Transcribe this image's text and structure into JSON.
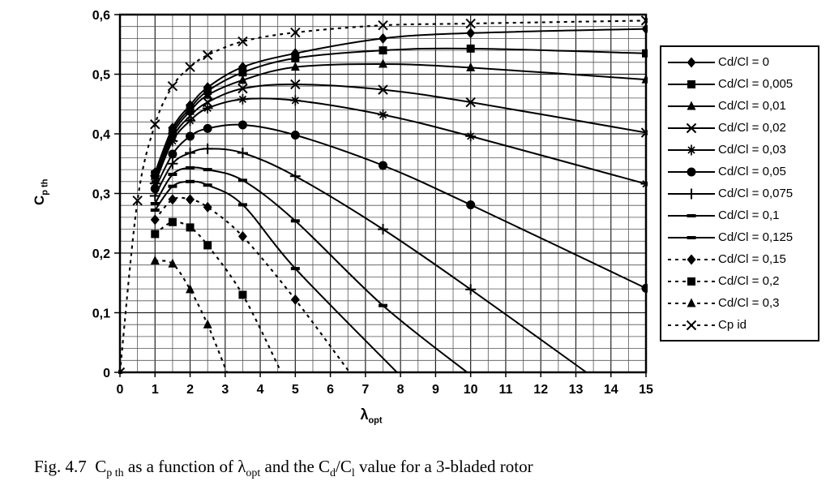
{
  "figure": {
    "caption_parts": [
      {
        "text": "Fig. 4.7  C"
      },
      {
        "text": "p th",
        "sub": true
      },
      {
        "text": " as a function of "
      },
      {
        "text": "λ"
      },
      {
        "text": "opt",
        "sub": true
      },
      {
        "text": " and the C"
      },
      {
        "text": "d",
        "sub": true
      },
      {
        "text": "/C"
      },
      {
        "text": "l",
        "sub": true
      },
      {
        "text": " value for a 3-bladed rotor"
      }
    ]
  },
  "chart": {
    "ylabel_main": "C",
    "ylabel_sub": "p th",
    "xlabel_main": "λ",
    "xlabel_sub": "opt"
  },
  "chart_data": {
    "type": "line",
    "title": "",
    "xlabel": "lambda_opt",
    "ylabel": "Cp_th",
    "xlim": [
      0,
      15
    ],
    "ylim": [
      0,
      0.6
    ],
    "grid": true,
    "x_minor_step": 0.5,
    "y_minor_step": 0.02,
    "x_tick_labels": [
      "0",
      "1",
      "2",
      "3",
      "4",
      "5",
      "6",
      "7",
      "8",
      "9",
      "10",
      "11",
      "12",
      "13",
      "14",
      "15"
    ],
    "y_tick_labels": [
      "0",
      "0,1",
      "0,2",
      "0,3",
      "0,4",
      "0,5",
      "0,6"
    ],
    "legend_position": "right",
    "line_color": "#000000",
    "series": [
      {
        "name": "Cd/Cl = 0",
        "marker": "diamond",
        "line": "solid",
        "points": [
          [
            1,
            0.335
          ],
          [
            1.5,
            0.41
          ],
          [
            2,
            0.448
          ],
          [
            2.5,
            0.478
          ],
          [
            3.5,
            0.512
          ],
          [
            5,
            0.535
          ],
          [
            7.5,
            0.56
          ],
          [
            10,
            0.569
          ],
          [
            15,
            0.576
          ]
        ]
      },
      {
        "name": "Cd/Cl = 0,005",
        "marker": "square",
        "line": "solid",
        "points": [
          [
            1,
            0.332
          ],
          [
            1.5,
            0.405
          ],
          [
            2,
            0.443
          ],
          [
            2.5,
            0.472
          ],
          [
            3.5,
            0.503
          ],
          [
            5,
            0.527
          ],
          [
            7.5,
            0.54
          ],
          [
            10,
            0.543
          ],
          [
            15,
            0.535
          ]
        ]
      },
      {
        "name": "Cd/Cl = 0,01",
        "marker": "triangle",
        "line": "solid",
        "points": [
          [
            1,
            0.329
          ],
          [
            1.5,
            0.4
          ],
          [
            2,
            0.438
          ],
          [
            2.5,
            0.465
          ],
          [
            3.5,
            0.49
          ],
          [
            5,
            0.512
          ],
          [
            7.5,
            0.517
          ],
          [
            10,
            0.511
          ],
          [
            15,
            0.491
          ]
        ]
      },
      {
        "name": "Cd/Cl = 0,02",
        "marker": "x",
        "line": "solid",
        "points": [
          [
            1,
            0.323
          ],
          [
            1.5,
            0.394
          ],
          [
            2,
            0.43
          ],
          [
            2.5,
            0.453
          ],
          [
            3.5,
            0.476
          ],
          [
            5,
            0.483
          ],
          [
            7.5,
            0.474
          ],
          [
            10,
            0.453
          ],
          [
            15,
            0.402
          ]
        ]
      },
      {
        "name": "Cd/Cl = 0,03",
        "marker": "star",
        "line": "solid",
        "points": [
          [
            1,
            0.317
          ],
          [
            1.5,
            0.388
          ],
          [
            2,
            0.422
          ],
          [
            2.5,
            0.443
          ],
          [
            3.5,
            0.458
          ],
          [
            5,
            0.456
          ],
          [
            7.5,
            0.432
          ],
          [
            10,
            0.396
          ],
          [
            15,
            0.316
          ]
        ]
      },
      {
        "name": "Cd/Cl = 0,05",
        "marker": "circle",
        "line": "solid",
        "points": [
          [
            1,
            0.308
          ],
          [
            1.5,
            0.366
          ],
          [
            2,
            0.396
          ],
          [
            2.5,
            0.409
          ],
          [
            3.5,
            0.415
          ],
          [
            5,
            0.398
          ],
          [
            7.5,
            0.347
          ],
          [
            10,
            0.281
          ],
          [
            15,
            0.141
          ]
        ]
      },
      {
        "name": "Cd/Cl = 0,075",
        "marker": "plus",
        "line": "solid",
        "points": [
          [
            1,
            0.296
          ],
          [
            1.5,
            0.35
          ],
          [
            2,
            0.368
          ],
          [
            2.5,
            0.375
          ],
          [
            3.5,
            0.368
          ],
          [
            5,
            0.329
          ],
          [
            7.5,
            0.24
          ],
          [
            10,
            0.139
          ],
          [
            13.3,
            0
          ]
        ]
      },
      {
        "name": "Cd/Cl = 0,1",
        "marker": "dash",
        "line": "solid",
        "points": [
          [
            1,
            0.283
          ],
          [
            1.5,
            0.332
          ],
          [
            2,
            0.343
          ],
          [
            2.5,
            0.34
          ],
          [
            3.5,
            0.322
          ],
          [
            5,
            0.254
          ],
          [
            7.5,
            0.112
          ],
          [
            9.9,
            0
          ]
        ]
      },
      {
        "name": "Cd/Cl = 0,125",
        "marker": "dash",
        "line": "solid",
        "points": [
          [
            1,
            0.272
          ],
          [
            1.5,
            0.312
          ],
          [
            2,
            0.32
          ],
          [
            2.5,
            0.314
          ],
          [
            3.5,
            0.281
          ],
          [
            5,
            0.174
          ],
          [
            7.9,
            0
          ]
        ]
      },
      {
        "name": "Cd/Cl = 0,15",
        "marker": "diamond",
        "line": "dashed",
        "points": [
          [
            1,
            0.256
          ],
          [
            1.5,
            0.29
          ],
          [
            2,
            0.29
          ],
          [
            2.5,
            0.277
          ],
          [
            3.5,
            0.228
          ],
          [
            5,
            0.122
          ],
          [
            6.55,
            0
          ]
        ]
      },
      {
        "name": "Cd/Cl = 0,2",
        "marker": "square",
        "line": "dashed",
        "points": [
          [
            1,
            0.232
          ],
          [
            1.5,
            0.252
          ],
          [
            2,
            0.243
          ],
          [
            2.5,
            0.213
          ],
          [
            3.5,
            0.13
          ],
          [
            4.6,
            0
          ]
        ]
      },
      {
        "name": "Cd/Cl = 0,3",
        "marker": "triangle",
        "line": "dashed",
        "points": [
          [
            1,
            0.187
          ],
          [
            1.5,
            0.182
          ],
          [
            2,
            0.139
          ],
          [
            2.5,
            0.08
          ],
          [
            3.05,
            0
          ]
        ]
      },
      {
        "name": "Cp id",
        "marker": "x",
        "line": "dashed",
        "points": [
          [
            0,
            0
          ],
          [
            0.5,
            0.288
          ],
          [
            1,
            0.416
          ],
          [
            1.5,
            0.48
          ],
          [
            2,
            0.512
          ],
          [
            2.5,
            0.532
          ],
          [
            3.5,
            0.555
          ],
          [
            5,
            0.57
          ],
          [
            7.5,
            0.582
          ],
          [
            10,
            0.585
          ],
          [
            15,
            0.59
          ]
        ]
      }
    ]
  }
}
